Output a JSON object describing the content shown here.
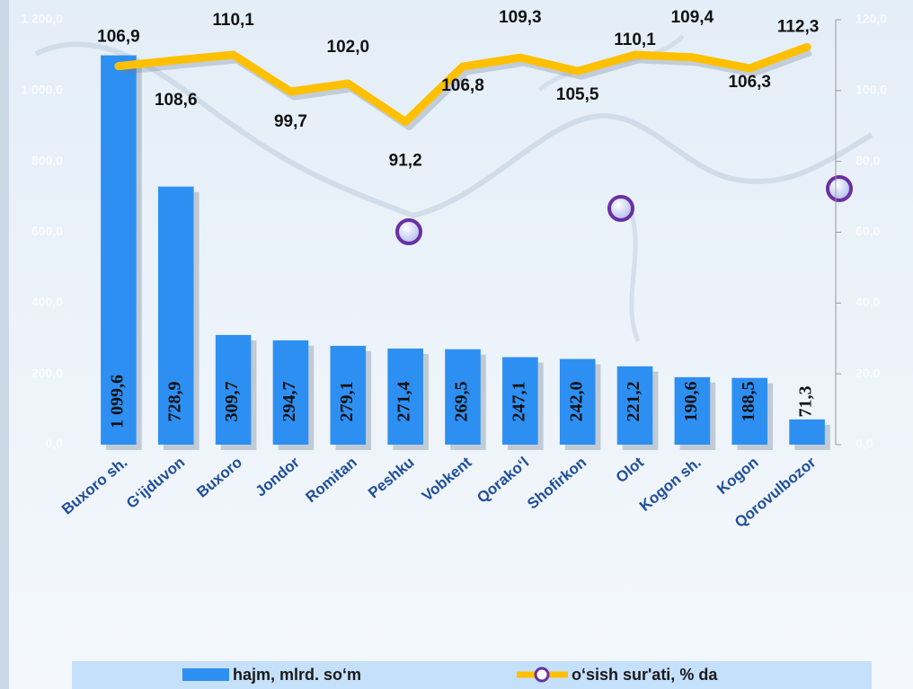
{
  "chart_data": {
    "type": "bar",
    "categories": [
      "Buxoro sh.",
      "G‘ijduvon",
      "Buxoro",
      "Jondor",
      "Romitan",
      "Peshku",
      "Vobkent",
      "Qorako‘l",
      "Shofirkon",
      "Olot",
      "Kogon sh.",
      "Kogon",
      "Qorovulbozor"
    ],
    "series": [
      {
        "name": "hajm, mlrd. so‘m",
        "type": "bar",
        "color": "#2e8ff2",
        "values": [
          1099.6,
          728.9,
          309.7,
          294.7,
          279.1,
          271.4,
          269.5,
          247.1,
          242.0,
          221.2,
          190.6,
          188.5,
          71.3
        ],
        "value_labels": [
          "1 099,6",
          "728,9",
          "309,7",
          "294,7",
          "279,1",
          "271,4",
          "269,5",
          "247,1",
          "242,0",
          "221,2",
          "190,6",
          "188,5",
          "71,3"
        ]
      },
      {
        "name": "o‘sish sur'ati, % da",
        "type": "line",
        "axis": "y2",
        "color": "#ffc000",
        "values": [
          106.9,
          108.6,
          110.1,
          99.7,
          102.0,
          91.2,
          106.8,
          109.3,
          105.5,
          110.1,
          109.4,
          106.3,
          112.3
        ],
        "value_labels": [
          "106,9",
          "108,6",
          "110,1",
          "99,7",
          "102,0",
          "91,2",
          "106,8",
          "109,3",
          "105,5",
          "110,1",
          "109,4",
          "106,3",
          "112,3"
        ]
      }
    ],
    "ylim": [
      0,
      1200
    ],
    "yticks": [
      {
        "value": 0,
        "label": "0,0"
      },
      {
        "value": 200,
        "label": "200,0"
      },
      {
        "value": 400,
        "label": "400,0"
      },
      {
        "value": 600,
        "label": "600,0"
      },
      {
        "value": 800,
        "label": "800,0"
      },
      {
        "value": 1000,
        "label": "1 000,0"
      },
      {
        "value": 1200,
        "label": "1 200,0"
      }
    ],
    "y2lim": [
      0,
      120
    ],
    "y2ticks": [
      {
        "value": 0,
        "label": "0,0"
      },
      {
        "value": 20,
        "label": "20,0"
      },
      {
        "value": 40,
        "label": "40,0"
      },
      {
        "value": 60,
        "label": "60,0"
      },
      {
        "value": 80,
        "label": "80,0"
      },
      {
        "value": 100,
        "label": "100,0"
      },
      {
        "value": 120,
        "label": "120,0"
      }
    ]
  }
}
